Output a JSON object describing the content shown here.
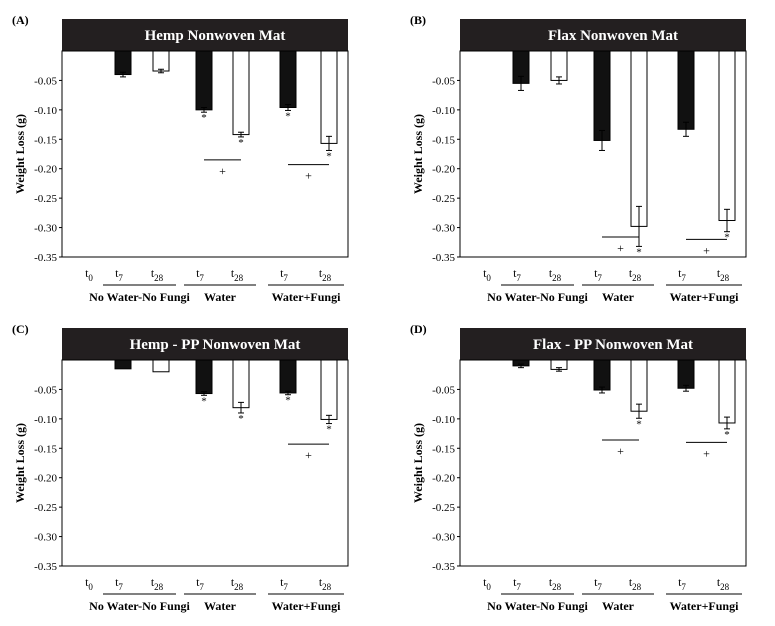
{
  "chart_data": [
    {
      "type": "bar",
      "panel_label": "(A)",
      "title": "Hemp Nonwoven Mat",
      "ylabel": "Weight Loss (g)",
      "ylim": [
        -0.35,
        0
      ],
      "yticks": [
        -0.05,
        -0.1,
        -0.15,
        -0.2,
        -0.25,
        -0.3,
        -0.35
      ],
      "ytick_labels": [
        "-0.05",
        "-0.10",
        "-0.15",
        "-0.20",
        "-0.25",
        "-0.30",
        "-0.35"
      ],
      "categories": [
        "t0",
        "t7",
        "t28",
        "t7",
        "t28",
        "t7",
        "t28"
      ],
      "groups": [
        "No Water-No Fungi",
        "Water",
        "Water+Fungi"
      ],
      "fills": [
        "none",
        "black",
        "white",
        "black",
        "white",
        "black",
        "white"
      ],
      "values": [
        0,
        -0.04,
        -0.034,
        -0.1,
        -0.142,
        -0.096,
        -0.157
      ],
      "errors": [
        0,
        0.004,
        0.003,
        0.004,
        0.004,
        0.005,
        0.012
      ],
      "stars": [
        false,
        false,
        false,
        true,
        true,
        true,
        true
      ],
      "plus_marks": [
        {
          "between": [
            3,
            4
          ],
          "y": -0.185,
          "label": "+"
        },
        {
          "between": [
            5,
            6
          ],
          "y": -0.193,
          "label": "+"
        }
      ]
    },
    {
      "type": "bar",
      "panel_label": "(B)",
      "title": "Flax Nonwoven Mat",
      "ylabel": "Weight Loss (g)",
      "ylim": [
        -0.35,
        0
      ],
      "yticks": [
        -0.05,
        -0.1,
        -0.15,
        -0.2,
        -0.25,
        -0.3,
        -0.35
      ],
      "ytick_labels": [
        "-0.05",
        "-0.10",
        "-0.15",
        "-0.20",
        "-0.25",
        "-0.30",
        "-0.35"
      ],
      "categories": [
        "t0",
        "t7",
        "t28",
        "t7",
        "t28",
        "t7",
        "t28"
      ],
      "groups": [
        "No Water-No Fungi",
        "Water",
        "Water+Fungi"
      ],
      "fills": [
        "none",
        "black",
        "white",
        "black",
        "white",
        "black",
        "white"
      ],
      "values": [
        0,
        -0.055,
        -0.05,
        -0.152,
        -0.298,
        -0.133,
        -0.288
      ],
      "errors": [
        0,
        0.012,
        0.006,
        0.017,
        0.034,
        0.012,
        0.019
      ],
      "stars": [
        false,
        false,
        false,
        false,
        true,
        false,
        true
      ],
      "plus_marks": [
        {
          "between": [
            3,
            4
          ],
          "y": -0.316,
          "label": "+"
        },
        {
          "between": [
            5,
            6
          ],
          "y": -0.32,
          "label": "+"
        }
      ]
    },
    {
      "type": "bar",
      "panel_label": "(C)",
      "title": "Hemp - PP Nonwoven Mat",
      "ylabel": "Weight Loss (g)",
      "ylim": [
        -0.35,
        0
      ],
      "yticks": [
        -0.05,
        -0.1,
        -0.15,
        -0.2,
        -0.25,
        -0.3,
        -0.35
      ],
      "ytick_labels": [
        "-0.05",
        "-0.10",
        "-0.15",
        "-0.20",
        "-0.25",
        "-0.30",
        "-0.35"
      ],
      "categories": [
        "t0",
        "t7",
        "t28",
        "t7",
        "t28",
        "t7",
        "t28"
      ],
      "groups": [
        "No Water-No Fungi",
        "Water",
        "Water+Fungi"
      ],
      "fills": [
        "none",
        "black",
        "white",
        "black",
        "white",
        "black",
        "white"
      ],
      "values": [
        0,
        -0.015,
        -0.02,
        -0.057,
        -0.081,
        -0.056,
        -0.101
      ],
      "errors": [
        0,
        0,
        0,
        0.003,
        0.009,
        0.003,
        0.007
      ],
      "stars": [
        false,
        false,
        false,
        true,
        true,
        true,
        true
      ],
      "plus_marks": [
        {
          "between": [
            5,
            6
          ],
          "y": -0.143,
          "label": "+"
        }
      ]
    },
    {
      "type": "bar",
      "panel_label": "(D)",
      "title": "Flax - PP Nonwoven Mat",
      "ylabel": "Weight Loss (g)",
      "ylim": [
        -0.35,
        0
      ],
      "yticks": [
        -0.05,
        -0.1,
        -0.15,
        -0.2,
        -0.25,
        -0.3,
        -0.35
      ],
      "ytick_labels": [
        "-0.05",
        "-0.10",
        "-0.15",
        "-0.20",
        "-0.25",
        "-0.30",
        "-0.35"
      ],
      "categories": [
        "t0",
        "t7",
        "t28",
        "t7",
        "t28",
        "t7",
        "t28"
      ],
      "groups": [
        "No Water-No Fungi",
        "Water",
        "Water+Fungi"
      ],
      "fills": [
        "none",
        "black",
        "white",
        "black",
        "white",
        "black",
        "white"
      ],
      "values": [
        0,
        -0.01,
        -0.016,
        -0.051,
        -0.087,
        -0.048,
        -0.107
      ],
      "errors": [
        0,
        0.003,
        0.003,
        0.005,
        0.012,
        0.005,
        0.01
      ],
      "stars": [
        false,
        false,
        false,
        false,
        true,
        false,
        true
      ],
      "plus_marks": [
        {
          "between": [
            3,
            4
          ],
          "y": -0.136,
          "label": "+"
        },
        {
          "between": [
            5,
            6
          ],
          "y": -0.14,
          "label": "+"
        }
      ]
    }
  ]
}
